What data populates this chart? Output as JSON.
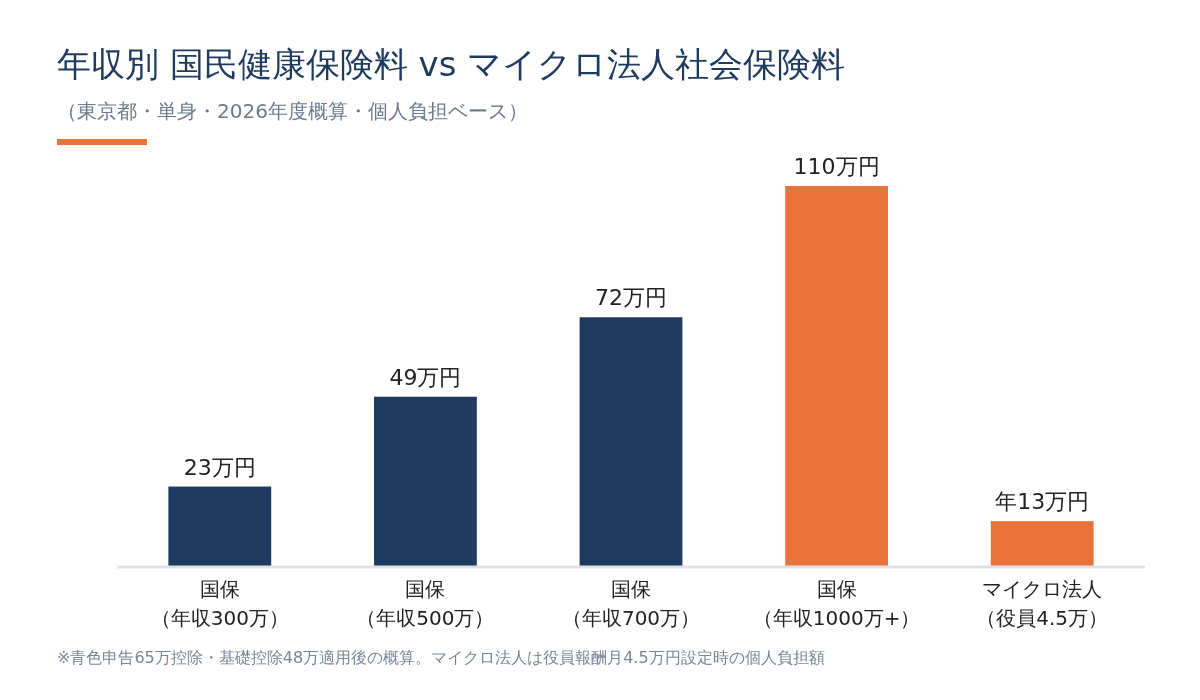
{
  "chart_data": {
    "type": "bar",
    "title": "年収別 国民健康保険料 vs マイクロ法人社会保険料",
    "subtitle": "（東京都・単身・2026年度概算・個人負担ベース）",
    "categories": [
      "国保（年収300万）",
      "国保（年収500万）",
      "国保（年収700万）",
      "国保（年収1000万+）",
      "マイクロ法人（役員4.5万）"
    ],
    "values": [
      23,
      49,
      72,
      110,
      13
    ],
    "colors": [
      "#1f3a5f",
      "#1f3a5f",
      "#1f3a5f",
      "#e8743b",
      "#e8743b"
    ],
    "value_labels": [
      "23万円",
      "49万円",
      "72万円",
      "110万円",
      "年13万円"
    ],
    "annotations": [
      "※青色申告65万控除・基礎控除48万適用後の概算。マイクロ法人は役員報酬月4.5万円設定時の個人負担額"
    ]
  }
}
